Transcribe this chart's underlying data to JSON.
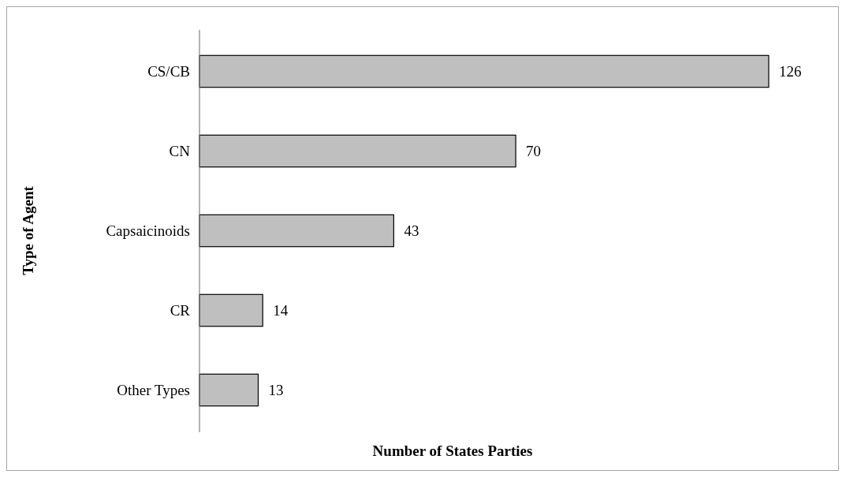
{
  "chart_data": {
    "type": "bar",
    "orientation": "horizontal",
    "categories": [
      "CS/CB",
      "CN",
      "Capsaicinoids",
      "CR",
      "Other Types"
    ],
    "values": [
      126,
      70,
      43,
      14,
      13
    ],
    "color": "#bfbfbf",
    "data_labels": true,
    "xlabel": "Number of States Parties",
    "ylabel": "Type of Agent"
  }
}
